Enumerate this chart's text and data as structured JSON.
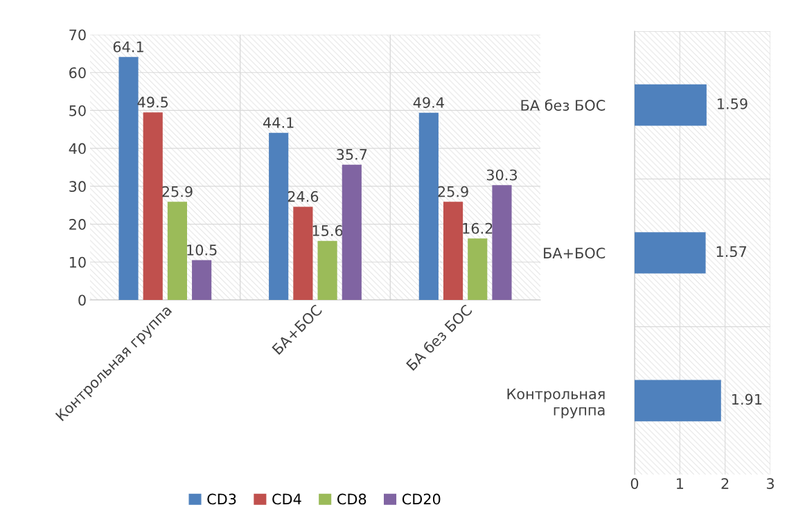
{
  "chart_data": [
    {
      "type": "bar",
      "categories": [
        "Контрольная группа",
        "БА+БОС",
        "БА без БОС"
      ],
      "series": [
        {
          "name": "CD3",
          "color": "#4f81bd",
          "values": [
            64.1,
            44.1,
            49.4
          ]
        },
        {
          "name": "CD4",
          "color": "#c0504d",
          "values": [
            49.5,
            24.6,
            25.9
          ]
        },
        {
          "name": "CD8",
          "color": "#9bbb59",
          "values": [
            25.9,
            15.6,
            16.2
          ]
        },
        {
          "name": "CD20",
          "color": "#8064a2",
          "values": [
            10.5,
            35.7,
            30.3
          ]
        }
      ],
      "ylim": [
        0,
        70
      ],
      "yticks": [
        0,
        10,
        20,
        30,
        40,
        50,
        60,
        70
      ],
      "grid": true,
      "legend": "bottom",
      "data_labels": true
    },
    {
      "type": "bar",
      "orientation": "horizontal",
      "categories": [
        "БА без БОС",
        "БА+БОС",
        "Контрольная\nгруппа"
      ],
      "values": [
        1.59,
        1.57,
        1.91
      ],
      "color": "#4f81bd",
      "xlim": [
        0,
        3
      ],
      "xticks": [
        0,
        1,
        2,
        3
      ],
      "grid": true,
      "data_labels": true
    }
  ]
}
